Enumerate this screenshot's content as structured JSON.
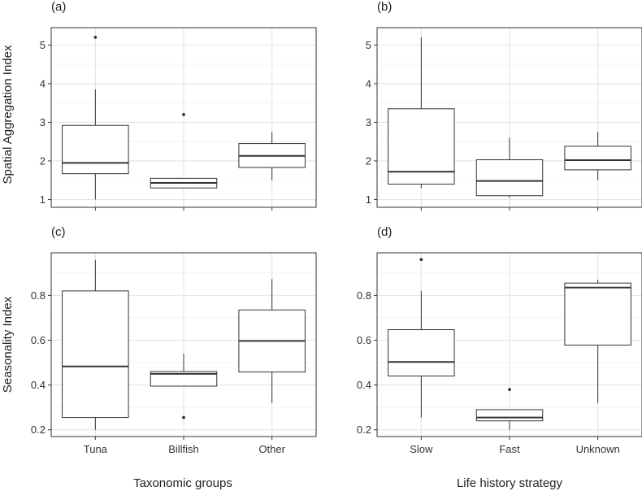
{
  "figure": {
    "xlabel_left": "Taxonomic groups",
    "xlabel_right": "Life history strategy",
    "ylabel_top": "Spatial Aggregation Index",
    "ylabel_bottom": "Seasonality Index"
  },
  "chart_data": [
    {
      "type": "box",
      "panel_label": "(a)",
      "categories": [
        "Tuna",
        "Billfish",
        "Other"
      ],
      "ylabel": "Spatial Aggregation Index",
      "ylim": [
        0.8,
        5.45
      ],
      "yticks": [
        1,
        2,
        3,
        4,
        5
      ],
      "grid": true,
      "boxes": [
        {
          "category": "Tuna",
          "min": 1.0,
          "q1": 1.67,
          "median": 1.95,
          "q3": 2.92,
          "max": 3.85,
          "outliers": [
            5.2
          ]
        },
        {
          "category": "Billfish",
          "min": 1.3,
          "q1": 1.3,
          "median": 1.43,
          "q3": 1.55,
          "max": 1.55,
          "outliers": [
            3.2
          ]
        },
        {
          "category": "Other",
          "min": 1.5,
          "q1": 1.83,
          "median": 2.13,
          "q3": 2.45,
          "max": 2.75,
          "outliers": []
        }
      ]
    },
    {
      "type": "box",
      "panel_label": "(b)",
      "categories": [
        "Slow",
        "Fast",
        "Unknown"
      ],
      "ylabel": "",
      "ylim": [
        0.8,
        5.45
      ],
      "yticks": [
        1,
        2,
        3,
        4,
        5
      ],
      "grid": true,
      "boxes": [
        {
          "category": "Slow",
          "min": 1.3,
          "q1": 1.4,
          "median": 1.72,
          "q3": 3.35,
          "max": 5.2,
          "outliers": []
        },
        {
          "category": "Fast",
          "min": 1.05,
          "q1": 1.1,
          "median": 1.48,
          "q3": 2.03,
          "max": 2.6,
          "outliers": []
        },
        {
          "category": "Unknown",
          "min": 1.5,
          "q1": 1.77,
          "median": 2.02,
          "q3": 2.38,
          "max": 2.75,
          "outliers": []
        }
      ]
    },
    {
      "type": "box",
      "panel_label": "(c)",
      "categories": [
        "Tuna",
        "Billfish",
        "Other"
      ],
      "ylabel": "Seasonality Index",
      "ylim": [
        0.17,
        0.99
      ],
      "yticks": [
        0.2,
        0.4,
        0.6,
        0.8
      ],
      "grid": true,
      "boxes": [
        {
          "category": "Tuna",
          "min": 0.2,
          "q1": 0.255,
          "median": 0.483,
          "q3": 0.82,
          "max": 0.958,
          "outliers": []
        },
        {
          "category": "Billfish",
          "min": 0.395,
          "q1": 0.395,
          "median": 0.45,
          "q3": 0.46,
          "max": 0.54,
          "outliers": [
            0.255
          ]
        },
        {
          "category": "Other",
          "min": 0.32,
          "q1": 0.458,
          "median": 0.597,
          "q3": 0.735,
          "max": 0.873,
          "outliers": []
        }
      ]
    },
    {
      "type": "box",
      "panel_label": "(d)",
      "categories": [
        "Slow",
        "Fast",
        "Unknown"
      ],
      "ylabel": "",
      "ylim": [
        0.17,
        0.99
      ],
      "yticks": [
        0.2,
        0.4,
        0.6,
        0.8
      ],
      "grid": true,
      "boxes": [
        {
          "category": "Slow",
          "min": 0.255,
          "q1": 0.44,
          "median": 0.503,
          "q3": 0.647,
          "max": 0.82,
          "outliers": [
            0.96
          ]
        },
        {
          "category": "Fast",
          "min": 0.2,
          "q1": 0.24,
          "median": 0.255,
          "q3": 0.29,
          "max": 0.29,
          "outliers": [
            0.38
          ]
        },
        {
          "category": "Unknown",
          "min": 0.32,
          "q1": 0.578,
          "median": 0.835,
          "q3": 0.855,
          "max": 0.87,
          "outliers": []
        }
      ]
    }
  ]
}
